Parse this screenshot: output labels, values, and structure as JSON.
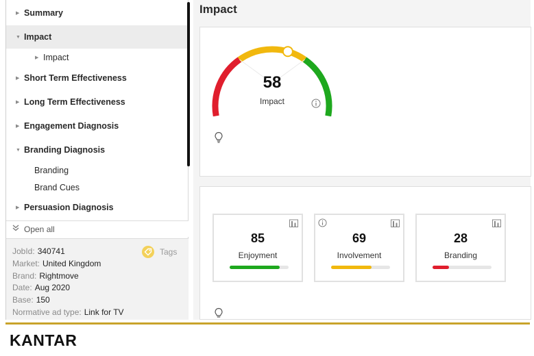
{
  "nav": {
    "items": [
      {
        "label": "Summary",
        "arrow": "▶"
      },
      {
        "label": "Impact",
        "arrow": "▼"
      },
      {
        "label": "Impact",
        "arrow": "▶"
      },
      {
        "label": "Short Term Effectiveness",
        "arrow": "▶"
      },
      {
        "label": "Long Term Effectiveness",
        "arrow": "▶"
      },
      {
        "label": "Engagement Diagnosis",
        "arrow": "▶"
      },
      {
        "label": "Branding Diagnosis",
        "arrow": "▼"
      },
      {
        "label": "Branding"
      },
      {
        "label": "Brand Cues"
      },
      {
        "label": "Persuasion Diagnosis",
        "arrow": "▶"
      }
    ],
    "open_all": "Open all"
  },
  "info": {
    "tags_label": "Tags",
    "rows": [
      {
        "key": "JobId:",
        "value": "340741"
      },
      {
        "key": "Market:",
        "value": "United Kingdom"
      },
      {
        "key": "Brand:",
        "value": "Rightmove"
      },
      {
        "key": "Date:",
        "value": "Aug 2020"
      },
      {
        "key": "Base:",
        "value": "150"
      },
      {
        "key": "Normative ad type:",
        "value": "Link for TV"
      }
    ]
  },
  "main": {
    "title": "Impact",
    "gauge": {
      "value": "58",
      "label": "Impact",
      "level": 0.58
    },
    "metrics": [
      {
        "value": "85",
        "label": "Enjoyment",
        "fill": 0.85,
        "color": "#1ea81e"
      },
      {
        "value": "69",
        "label": "Involvement",
        "fill": 0.69,
        "color": "#f1b80e"
      },
      {
        "value": "28",
        "label": "Branding",
        "fill": 0.28,
        "color": "#e01e2d"
      }
    ]
  },
  "colors": {
    "red": "#e01e2d",
    "yellow": "#f1b80e",
    "green": "#1ea81e",
    "accent": "#c8a32a"
  },
  "footer": {
    "logo": "KANTAR"
  }
}
